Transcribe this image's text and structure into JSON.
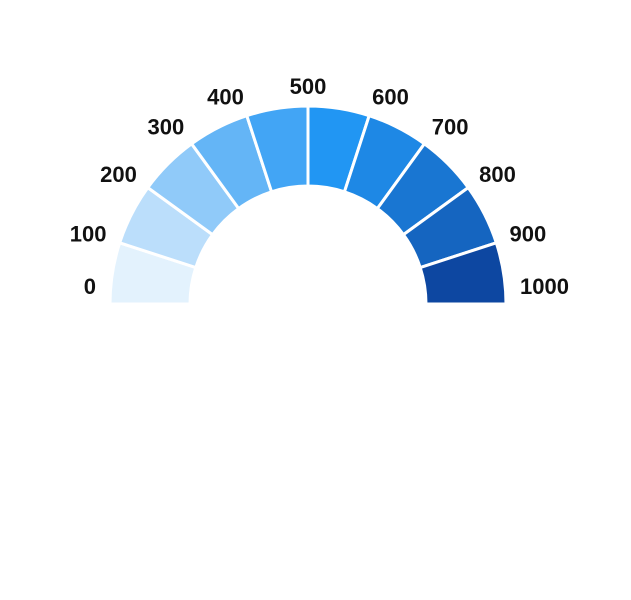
{
  "chart_data": {
    "type": "gauge",
    "min": 0,
    "max": 1000,
    "tick_labels": [
      "0",
      "100",
      "200",
      "300",
      "400",
      "500",
      "600",
      "700",
      "800",
      "900",
      "1000"
    ],
    "bands": [
      {
        "from": 0,
        "to": 100,
        "color": "#e3f2fd"
      },
      {
        "from": 100,
        "to": 200,
        "color": "#bbdefb"
      },
      {
        "from": 200,
        "to": 300,
        "color": "#90caf9"
      },
      {
        "from": 300,
        "to": 400,
        "color": "#64b5f6"
      },
      {
        "from": 400,
        "to": 500,
        "color": "#42a5f5"
      },
      {
        "from": 500,
        "to": 600,
        "color": "#2196f3"
      },
      {
        "from": 600,
        "to": 700,
        "color": "#1e88e5"
      },
      {
        "from": 700,
        "to": 800,
        "color": "#1976d2"
      },
      {
        "from": 800,
        "to": 900,
        "color": "#1565c0"
      },
      {
        "from": 900,
        "to": 1000,
        "color": "#0d47a1"
      }
    ]
  }
}
